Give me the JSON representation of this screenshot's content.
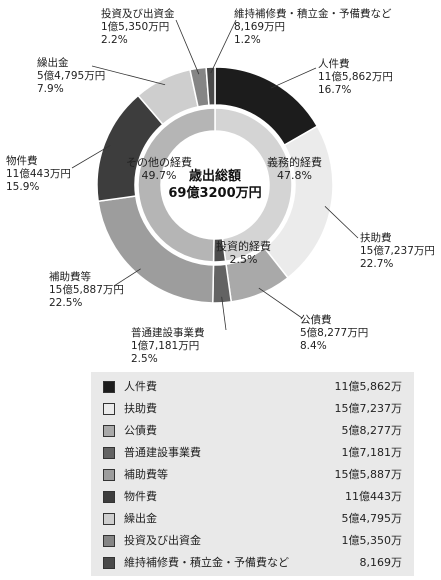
{
  "chart_data": {
    "type": "pie",
    "title": "歳出総額",
    "total": "69億3200万円",
    "outer_ring": [
      {
        "label": "人件費",
        "amount": "11億5,862万円",
        "percent": 16.7,
        "legend_amount": "11億5,862万",
        "color": "#1c1c1c"
      },
      {
        "label": "扶助費",
        "amount": "15億7,237万円",
        "percent": 22.7,
        "legend_amount": "15億7,237万",
        "color": "#ebebeb"
      },
      {
        "label": "公債費",
        "amount": "5億8,277万円",
        "percent": 8.4,
        "legend_amount": "5億8,277万",
        "color": "#a9a9a9"
      },
      {
        "label": "普通建設事業費",
        "amount": "1億7,181万円",
        "percent": 2.5,
        "legend_amount": "1億7,181万",
        "color": "#636363"
      },
      {
        "label": "補助費等",
        "amount": "15億5,887万円",
        "percent": 22.5,
        "legend_amount": "15億5,887万",
        "color": "#9d9d9d"
      },
      {
        "label": "物件費",
        "amount": "11億443万円",
        "percent": 15.9,
        "legend_amount": "11億443万",
        "color": "#3d3d3d"
      },
      {
        "label": "繰出金",
        "amount": "5億4,795万円",
        "percent": 7.9,
        "legend_amount": "5億4,795万",
        "color": "#cecece"
      },
      {
        "label": "投資及び出資金",
        "amount": "1億5,350万円",
        "percent": 2.2,
        "legend_amount": "1億5,350万",
        "color": "#858585"
      },
      {
        "label": "維持補修費・積立金・予備費など",
        "amount": "8,169万円",
        "percent": 1.2,
        "legend_amount": "8,169万",
        "color": "#4a4a4a"
      }
    ],
    "inner_ring": [
      {
        "label": "義務的経費",
        "percent": 47.8,
        "color": "#d4d4d4"
      },
      {
        "label": "投資的経費",
        "percent": 2.5,
        "color": "#4d4d4d"
      },
      {
        "label": "その他の経費",
        "percent": 49.7,
        "color": "#b5b5b5"
      }
    ]
  }
}
